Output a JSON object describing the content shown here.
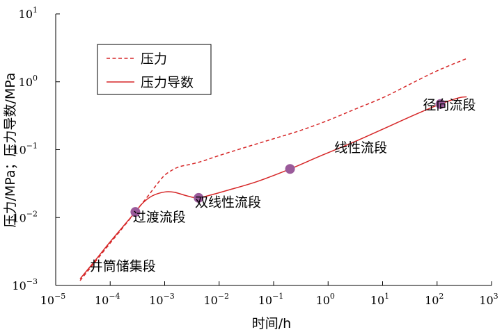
{
  "chart_data": {
    "type": "line",
    "xscale": "log",
    "yscale": "log",
    "xlim": [
      1e-05,
      1000
    ],
    "ylim": [
      0.001,
      10
    ],
    "xlabel": "时间/h",
    "ylabel": "压力/MPa；压力导数/MPa",
    "x_ticks": [
      {
        "base": "10",
        "exp": "−5",
        "value": 1e-05
      },
      {
        "base": "10",
        "exp": "−4",
        "value": 0.0001
      },
      {
        "base": "10",
        "exp": "−3",
        "value": 0.001
      },
      {
        "base": "10",
        "exp": "−2",
        "value": 0.01
      },
      {
        "base": "10",
        "exp": "−1",
        "value": 0.1
      },
      {
        "base": "10",
        "exp": "0",
        "value": 1
      },
      {
        "base": "10",
        "exp": "1",
        "value": 10
      },
      {
        "base": "10",
        "exp": "2",
        "value": 100
      },
      {
        "base": "10",
        "exp": "3",
        "value": 1000
      }
    ],
    "y_ticks": [
      {
        "base": "10",
        "exp": "−3",
        "value": 0.001
      },
      {
        "base": "10",
        "exp": "−2",
        "value": 0.01
      },
      {
        "base": "10",
        "exp": "−1",
        "value": 0.1
      },
      {
        "base": "10",
        "exp": "0",
        "value": 1
      },
      {
        "base": "10",
        "exp": "1",
        "value": 10
      }
    ],
    "legend_position": "top-left",
    "series": [
      {
        "name": "压力",
        "style": "dashed",
        "color": "#d62728",
        "points": [
          [
            2.8e-05,
            0.00118
          ],
          [
            5e-05,
            0.0021
          ],
          [
            0.0001,
            0.0042
          ],
          [
            0.0002,
            0.0083
          ],
          [
            0.0003,
            0.0126
          ],
          [
            0.0005,
            0.021
          ],
          [
            0.0007,
            0.03
          ],
          [
            0.001,
            0.042
          ],
          [
            0.0015,
            0.052
          ],
          [
            0.002,
            0.057
          ],
          [
            0.003,
            0.061
          ],
          [
            0.005,
            0.068
          ],
          [
            0.01,
            0.082
          ],
          [
            0.03,
            0.108
          ],
          [
            0.1,
            0.145
          ],
          [
            0.3,
            0.19
          ],
          [
            1,
            0.27
          ],
          [
            3,
            0.39
          ],
          [
            10,
            0.58
          ],
          [
            30,
            0.9
          ],
          [
            100,
            1.45
          ],
          [
            350,
            2.2
          ]
        ]
      },
      {
        "name": "压力导数",
        "style": "solid",
        "color": "#d62728",
        "points": [
          [
            2.8e-05,
            0.00125
          ],
          [
            5e-05,
            0.0022
          ],
          [
            0.0001,
            0.0044
          ],
          [
            0.0002,
            0.0085
          ],
          [
            0.00029,
            0.0121
          ],
          [
            0.0004,
            0.0165
          ],
          [
            0.0006,
            0.021
          ],
          [
            0.001,
            0.0238
          ],
          [
            0.0015,
            0.0236
          ],
          [
            0.0025,
            0.021
          ],
          [
            0.004,
            0.0195
          ],
          [
            0.007,
            0.0215
          ],
          [
            0.015,
            0.0255
          ],
          [
            0.05,
            0.034
          ],
          [
            0.2,
            0.052
          ],
          [
            0.7,
            0.08
          ],
          [
            3,
            0.13
          ],
          [
            10,
            0.2
          ],
          [
            40,
            0.33
          ],
          [
            115,
            0.47
          ],
          [
            250,
            0.58
          ],
          [
            350,
            0.6
          ]
        ]
      }
    ],
    "markers": [
      {
        "x": 0.00029,
        "y": 0.0121
      },
      {
        "x": 0.0042,
        "y": 0.0195
      },
      {
        "x": 0.2,
        "y": 0.052
      },
      {
        "x": 115,
        "y": 0.47
      }
    ],
    "marker_color": "#9a5a9a",
    "annotations": [
      {
        "text": "井筒储集段",
        "x": 4.2e-05,
        "y": 0.00165
      },
      {
        "text": "过渡流段",
        "x": 0.00026,
        "y": 0.0087
      },
      {
        "text": "双线性流段",
        "x": 0.0036,
        "y": 0.0145
      },
      {
        "text": "线性流段",
        "x": 1.3,
        "y": 0.092
      },
      {
        "text": "径向流段",
        "x": 55,
        "y": 0.39
      }
    ]
  }
}
